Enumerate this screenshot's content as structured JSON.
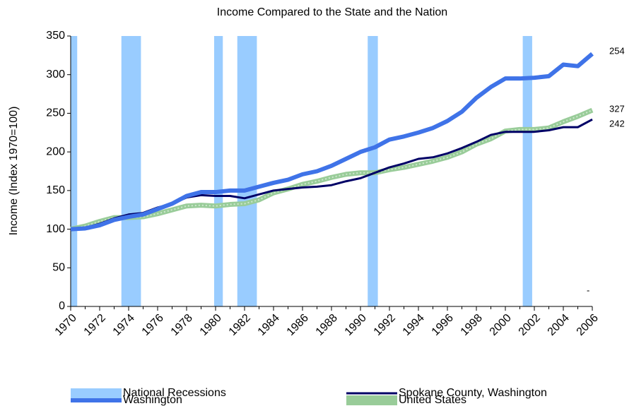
{
  "chart_data": {
    "type": "line",
    "title": "Income Compared to the State and the Nation",
    "y_label": "Income (Index 1970=100)",
    "x": [
      1970,
      1971,
      1972,
      1973,
      1974,
      1975,
      1976,
      1977,
      1978,
      1979,
      1980,
      1981,
      1982,
      1983,
      1984,
      1985,
      1986,
      1987,
      1988,
      1989,
      1990,
      1991,
      1992,
      1993,
      1994,
      1995,
      1996,
      1997,
      1998,
      1999,
      2000,
      2001,
      2002,
      2003,
      2004,
      2005,
      2006
    ],
    "xlim": [
      1970,
      2006
    ],
    "xticks": [
      1970,
      1972,
      1974,
      1976,
      1978,
      1980,
      1982,
      1984,
      1986,
      1988,
      1990,
      1992,
      1994,
      1996,
      1998,
      2000,
      2002,
      2004,
      2006
    ],
    "ylim": [
      0,
      350
    ],
    "yticks": [
      0,
      50,
      100,
      150,
      200,
      250,
      300,
      350
    ],
    "recessions": {
      "name": "National Recessions",
      "color": "#99ccff",
      "periods": [
        [
          1970,
          1970.45
        ],
        [
          1973.5,
          1974.85
        ],
        [
          1979.9,
          1980.5
        ],
        [
          1981.5,
          1982.85
        ],
        [
          1990.5,
          1991.2
        ],
        [
          2001.2,
          2001.85
        ]
      ]
    },
    "series": [
      {
        "name": "Spokane County, Washington",
        "color": "#000066",
        "width": 3,
        "values": [
          100,
          102,
          107,
          114,
          119,
          121,
          128,
          133,
          141,
          144,
          143,
          143,
          140,
          145,
          150,
          152,
          154,
          155,
          157,
          162,
          166,
          173,
          180,
          185,
          191,
          193,
          198,
          205,
          213,
          222,
          226,
          226,
          226,
          228,
          232,
          232,
          242
        ]
      },
      {
        "name": "Washington",
        "color": "#3f73e8",
        "width": 6,
        "values": [
          100,
          101,
          105,
          112,
          116,
          119,
          126,
          133,
          143,
          148,
          148,
          150,
          150,
          155,
          160,
          164,
          171,
          175,
          182,
          191,
          200,
          206,
          216,
          220,
          225,
          231,
          240,
          252,
          270,
          284,
          295,
          295,
          296,
          298,
          313,
          311,
          327
        ]
      },
      {
        "name": "United States",
        "color": "#99cc99",
        "width": 7,
        "values": [
          100,
          104,
          110,
          115,
          115,
          116,
          120,
          125,
          130,
          131,
          130,
          132,
          133,
          138,
          147,
          152,
          158,
          162,
          167,
          171,
          173,
          173,
          177,
          180,
          184,
          188,
          193,
          200,
          210,
          217,
          227,
          229,
          229,
          231,
          239,
          246,
          254
        ]
      }
    ],
    "annotation": "-"
  }
}
